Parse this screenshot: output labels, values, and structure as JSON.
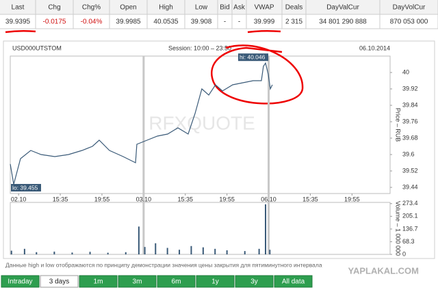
{
  "table": {
    "headers": [
      "Last",
      "Chg",
      "Chg%",
      "Open",
      "High",
      "Low",
      "Bid",
      "Ask",
      "VWAP",
      "Deals",
      "DayValCur",
      "DayVolCur"
    ],
    "row": [
      "39.9395",
      "-0.0175",
      "-0.04%",
      "39.9985",
      "40.0535",
      "39.908",
      "-",
      "-",
      "39.999",
      "2 315",
      "34 801 290 888",
      "870 053 000"
    ]
  },
  "panel": {
    "ticker": "USD000UTSTOM",
    "session": "Session: 10:00 – 23:50",
    "date": "06.10.2014",
    "watermark": "RFXQUOTE"
  },
  "chart_data": [
    {
      "type": "line",
      "color": "#3a5a78",
      "y_label": "Price – RUB",
      "x": [
        -0.7,
        -0.41,
        0.16,
        1.02,
        1.89,
        3.04,
        4.19,
        5.33,
        6.2,
        6.77,
        7.63,
        8.78,
        9.82,
        9.93,
        10.79,
        11.66,
        12.52,
        13.38,
        14.24,
        14.82,
        15.39,
        15.97,
        16.54,
        17.12,
        17.98,
        18.84,
        19.7,
        20.39,
        20.56,
        20.74,
        20.97,
        21.14,
        21.31
      ],
      "values": [
        39.554,
        39.455,
        39.58,
        39.62,
        39.6,
        39.59,
        39.6,
        39.62,
        39.64,
        39.67,
        39.62,
        39.59,
        39.56,
        39.65,
        39.67,
        39.69,
        39.7,
        39.73,
        39.7,
        39.8,
        39.92,
        39.89,
        39.94,
        39.91,
        39.94,
        39.95,
        39.96,
        39.96,
        40.03,
        40.046,
        39.99,
        39.92,
        39.94
      ],
      "xlim": [
        -0.7,
        31.2
      ],
      "xticks": [
        {
          "value": 0,
          "label": "02.10"
        },
        {
          "value": 3.5,
          "label": "15:35"
        },
        {
          "value": 7,
          "label": "19:55"
        },
        {
          "value": 10.5,
          "label": "03.10"
        },
        {
          "value": 14,
          "label": "15:35"
        },
        {
          "value": 17.5,
          "label": "19:55"
        },
        {
          "value": 21,
          "label": "06.10"
        },
        {
          "value": 24.5,
          "label": "15:35"
        },
        {
          "value": 28,
          "label": "19:55"
        }
      ],
      "ylim": [
        39.41,
        40.08
      ],
      "yticks": [
        39.44,
        39.52,
        39.6,
        39.68,
        39.76,
        39.84,
        39.92,
        40
      ],
      "annotations": [
        {
          "text": "hi: 40.046",
          "x": 20.74,
          "y": 40.046
        },
        {
          "text": "lo: 39.455",
          "x": -0.41,
          "y": 39.455
        }
      ]
    },
    {
      "type": "bar",
      "color": "#3a5a78",
      "y_label": "Volume – 1 000 000",
      "x": [
        -0.6,
        0.5,
        1.5,
        3,
        4.5,
        6,
        7.5,
        9,
        10.1,
        10.6,
        11.5,
        12.5,
        13.5,
        14.5,
        15.5,
        16.5,
        17.5,
        19,
        20.2,
        20.74,
        21.1
      ],
      "values": [
        20,
        30,
        12,
        15,
        10,
        14,
        9,
        12,
        150,
        40,
        60,
        35,
        25,
        45,
        38,
        30,
        22,
        18,
        30,
        270,
        25
      ],
      "xlim": [
        -0.7,
        31.2
      ],
      "ylim": [
        0,
        280
      ],
      "yticks": [
        0,
        68.3,
        136.7,
        205.1,
        273.4
      ]
    }
  ],
  "footnote": "Данные high и low отображаются по принципу демонстрации значения цены закрытия для пятиминутного интервала",
  "site": "YAPLAKAL.COM",
  "tabs": [
    "Intraday",
    "3 days",
    "1m",
    "3m",
    "6m",
    "1y",
    "3y",
    "All data"
  ],
  "active_tab_index": 1
}
